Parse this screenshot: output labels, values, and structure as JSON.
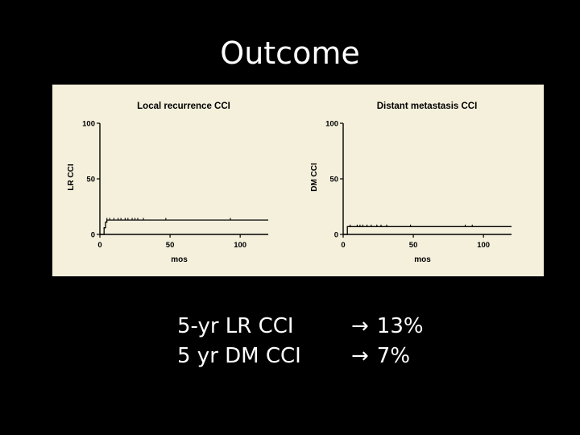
{
  "slide": {
    "title": "Outcome"
  },
  "summary": {
    "rows": [
      {
        "label": "5-yr LR CCI",
        "arrow": "→",
        "value": "13%"
      },
      {
        "label": "5 yr DM CCI",
        "arrow": "→",
        "value": "7%"
      }
    ]
  },
  "colors": {
    "background": "#000000",
    "figure_background": "#f4f0dc",
    "line": "#000000"
  },
  "chart_data": [
    {
      "type": "line",
      "title": "Local recurrence  CCI",
      "xlabel": "mos",
      "ylabel": "LR CCI",
      "xlim": [
        0,
        120
      ],
      "ylim": [
        0,
        100
      ],
      "xticks": [
        0,
        50,
        100
      ],
      "yticks": [
        0,
        50,
        100
      ],
      "grid": false,
      "series": [
        {
          "x": [
            0,
            3,
            3,
            4,
            4,
            5,
            5,
            120
          ],
          "y": [
            0,
            0,
            6,
            6,
            11,
            11,
            13,
            13
          ]
        }
      ],
      "censor_x": [
        5,
        7,
        10,
        13,
        15,
        18,
        20,
        23,
        25,
        27,
        31,
        47,
        93
      ]
    },
    {
      "type": "line",
      "title": "Distant metastasis CCI",
      "xlabel": "mos",
      "ylabel": "DM CCI",
      "xlim": [
        0,
        120
      ],
      "ylim": [
        0,
        100
      ],
      "xticks": [
        0,
        50,
        100
      ],
      "yticks": [
        0,
        50,
        100
      ],
      "grid": false,
      "series": [
        {
          "x": [
            0,
            3,
            3,
            120
          ],
          "y": [
            0,
            0,
            7,
            7
          ]
        }
      ],
      "censor_x": [
        5,
        10,
        12,
        14,
        17,
        20,
        24,
        27,
        31,
        48,
        87,
        92
      ]
    }
  ]
}
